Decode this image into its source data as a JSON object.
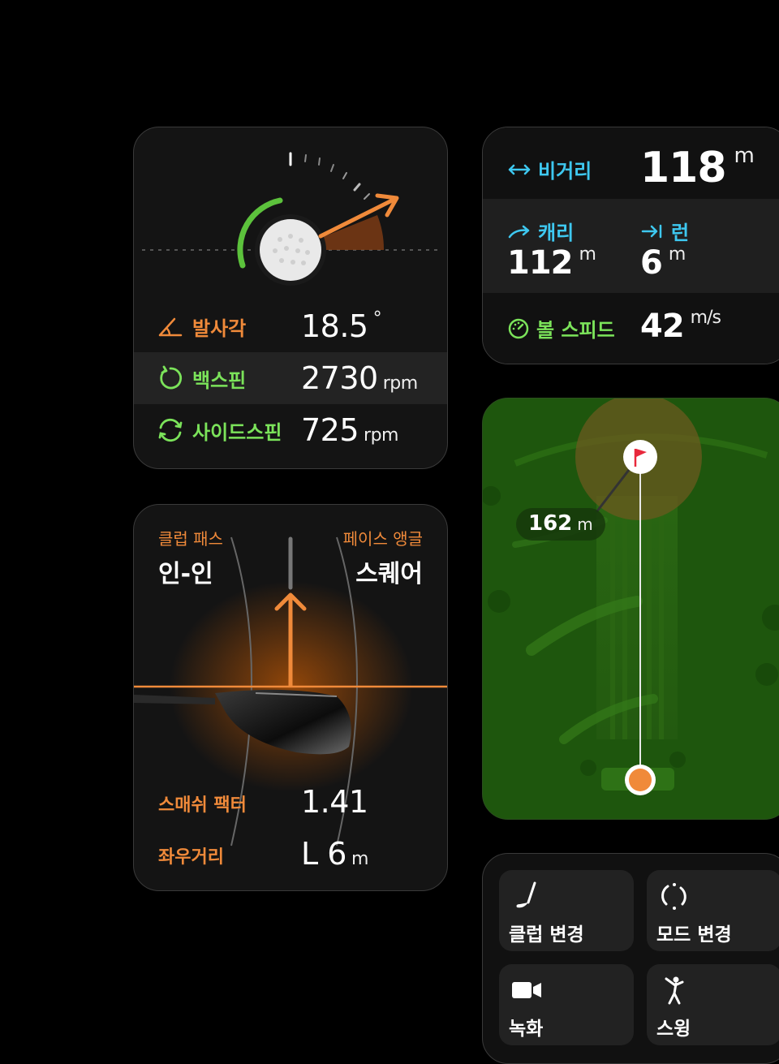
{
  "launch": {
    "angle_label": "발사각",
    "angle_value": "18.5",
    "angle_unit": "°",
    "backspin_label": "백스핀",
    "backspin_value": "2730",
    "backspin_unit": "rpm",
    "sidespin_label": "사이드스핀",
    "sidespin_value": "725",
    "sidespin_unit": "rpm"
  },
  "distance": {
    "total_label": "비거리",
    "total_value": "118",
    "total_unit": "m",
    "carry_label": "캐리",
    "carry_value": "112",
    "carry_unit": "m",
    "run_label": "런",
    "run_value": "6",
    "run_unit": "m",
    "speed_label": "볼 스피드",
    "speed_value": "42",
    "speed_unit": "m/s"
  },
  "map": {
    "distance_value": "162",
    "distance_unit": "m"
  },
  "club": {
    "path_label": "클럽 패스",
    "path_value": "인-인",
    "face_label": "페이스 앵글",
    "face_value": "스퀘어",
    "smash_label": "스매쉬 팩터",
    "smash_value": "1.41",
    "lateral_label": "좌우거리",
    "lateral_value": "L 6",
    "lateral_unit": "m"
  },
  "actions": [
    {
      "label": "클럽 변경",
      "icon": "club-icon"
    },
    {
      "label": "모드 변경",
      "icon": "mode-icon"
    },
    {
      "label": "녹화",
      "icon": "video-icon"
    },
    {
      "label": "스윙",
      "icon": "swing-icon"
    }
  ],
  "colors": {
    "accent": "#f08a3a",
    "green": "#7be35a",
    "cyan": "#3ec8f0",
    "flag": "#e8283c"
  }
}
